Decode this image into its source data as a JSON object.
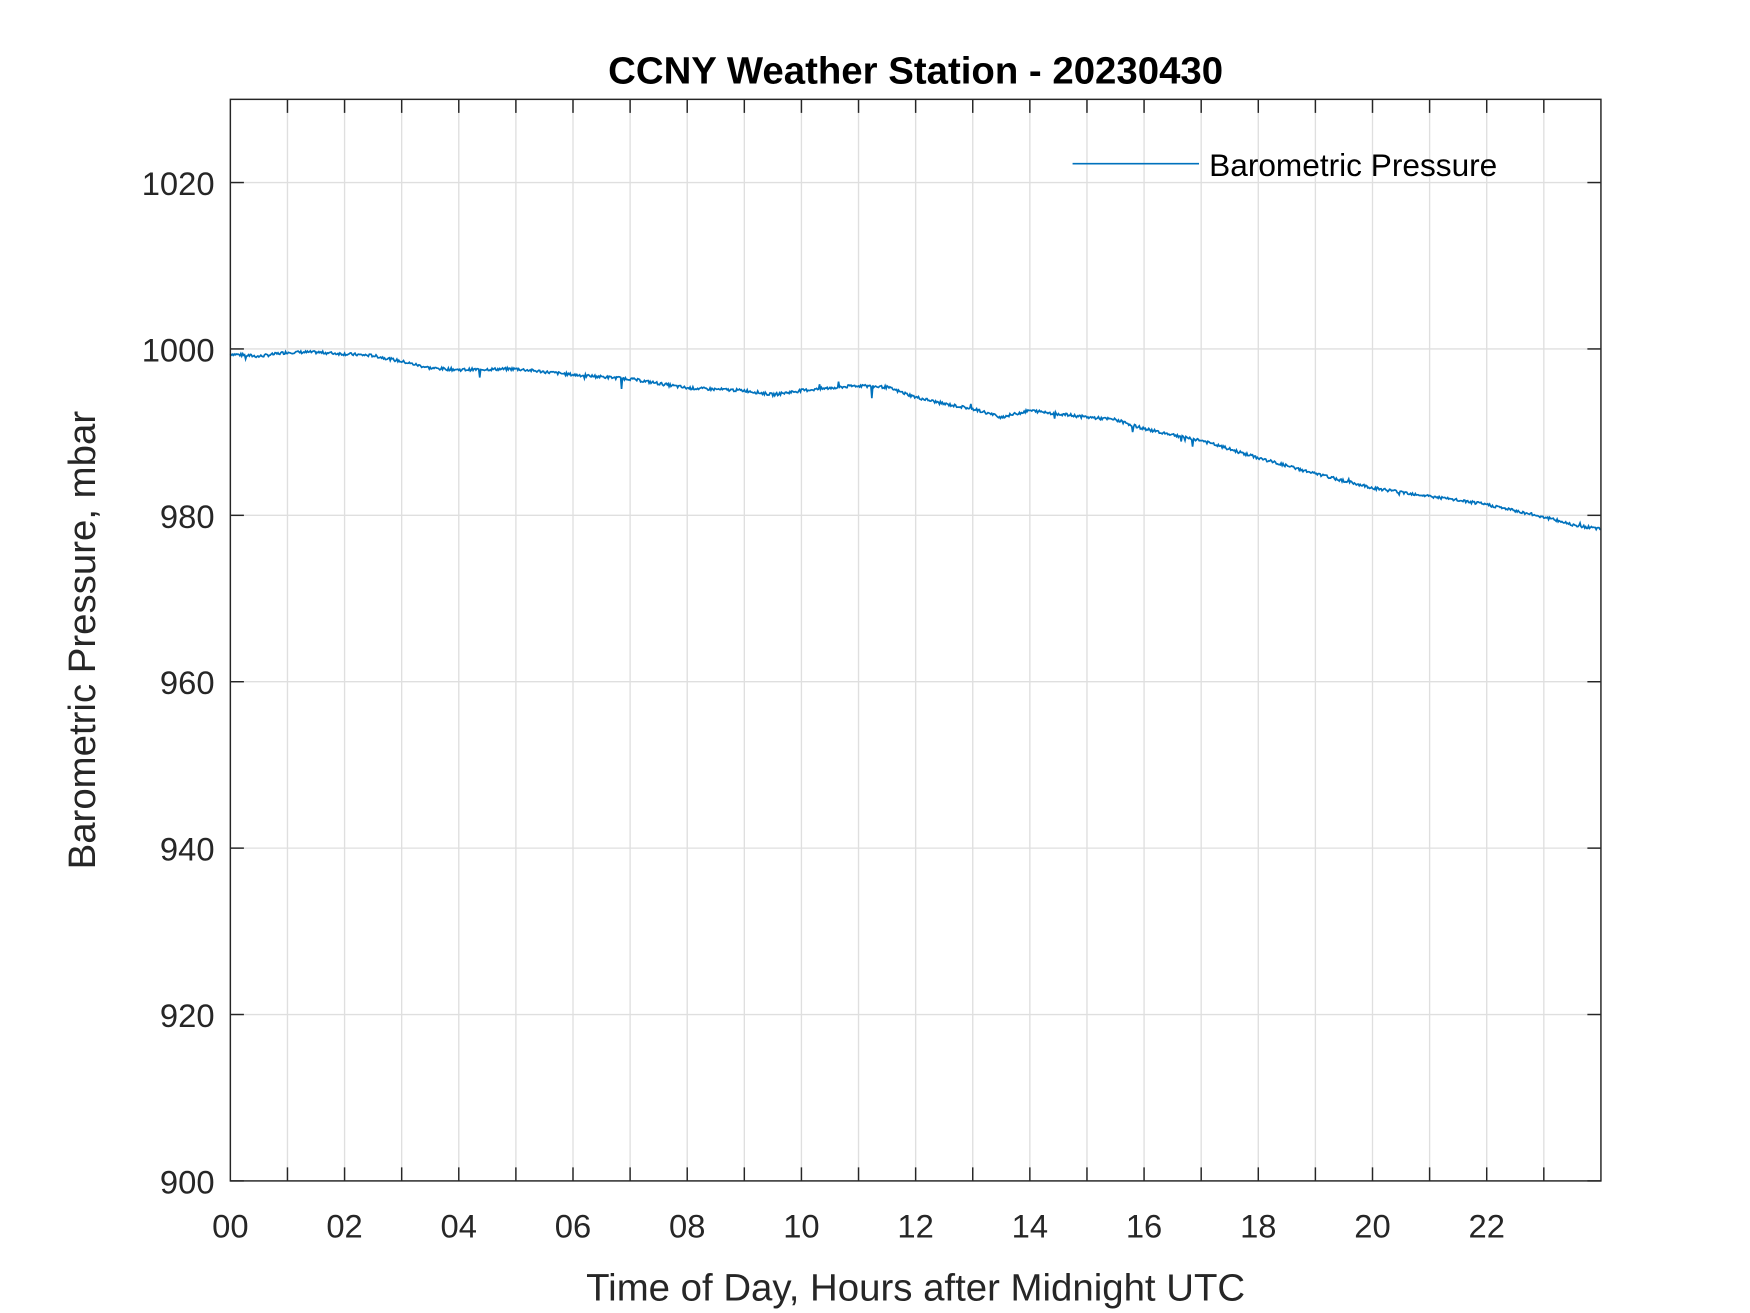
{
  "chart_data": {
    "type": "line",
    "title": "CCNY Weather Station - 20230430",
    "xlabel": "Time of Day, Hours after Midnight UTC",
    "ylabel": "Barometric Pressure, mbar",
    "xlim": [
      0,
      24
    ],
    "ylim": [
      900,
      1030
    ],
    "grid": true,
    "legend_position": "top-right",
    "x_ticks": [
      0,
      2,
      4,
      6,
      8,
      10,
      12,
      14,
      16,
      18,
      20,
      22
    ],
    "x_tick_labels": [
      "00",
      "02",
      "04",
      "06",
      "08",
      "10",
      "12",
      "14",
      "16",
      "18",
      "20",
      "22"
    ],
    "y_ticks": [
      900,
      920,
      940,
      960,
      980,
      1000,
      1020
    ],
    "y_tick_labels": [
      "900",
      "920",
      "940",
      "960",
      "980",
      "1000",
      "1020"
    ],
    "series": [
      {
        "name": "Barometric Pressure",
        "color": "#0072BD",
        "x": [
          0,
          0.5,
          1,
          1.5,
          2,
          2.5,
          3,
          3.5,
          4,
          5,
          6,
          7,
          8,
          9,
          9.5,
          10,
          11,
          11.5,
          12,
          12.5,
          13,
          13.5,
          14,
          15,
          15.5,
          16,
          17,
          18,
          19,
          20,
          21,
          22,
          23,
          23.5,
          24
        ],
        "y": [
          999.4,
          999.1,
          999.6,
          999.6,
          999.4,
          999.2,
          998.5,
          997.7,
          997.5,
          997.6,
          996.9,
          996.4,
          995.3,
          995.0,
          994.5,
          995.0,
          995.6,
          995.4,
          994.2,
          993.4,
          992.8,
          991.8,
          992.6,
          991.8,
          991.5,
          990.4,
          989.0,
          986.9,
          985.0,
          983.3,
          982.3,
          981.3,
          979.8,
          978.9,
          978.3
        ]
      }
    ]
  }
}
